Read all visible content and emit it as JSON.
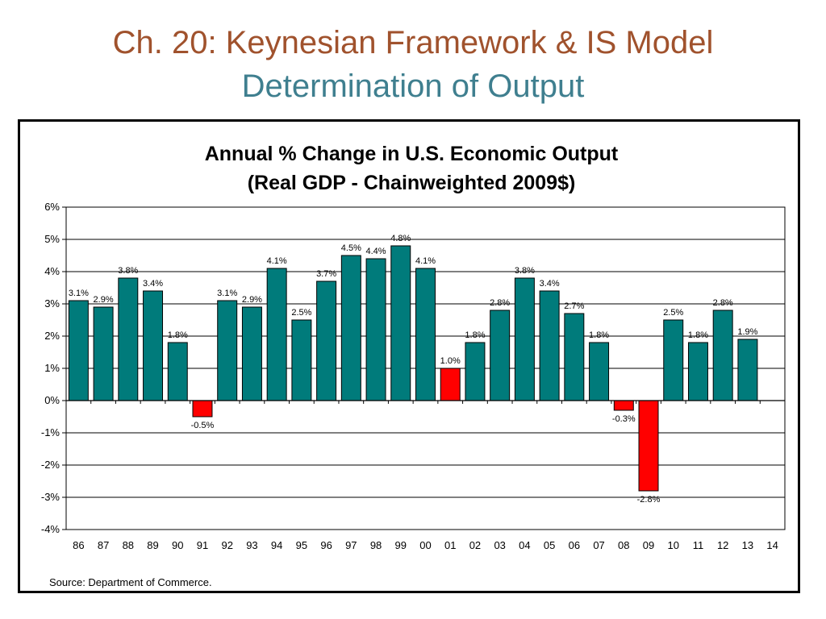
{
  "slide": {
    "title": "Ch. 20: Keynesian Framework & IS Model",
    "subtitle": "Determination of Output"
  },
  "colors": {
    "title": "#a0522d",
    "subtitle": "#3f7f8f",
    "positive_bar": "#007b7b",
    "negative_bar": "#ff0000"
  },
  "chart_data": {
    "type": "bar",
    "title_lines": [
      "Annual % Change in U.S. Economic Output",
      "(Real GDP - Chainweighted 2009$)"
    ],
    "categories": [
      "86",
      "87",
      "88",
      "89",
      "90",
      "91",
      "92",
      "93",
      "94",
      "95",
      "96",
      "97",
      "98",
      "99",
      "00",
      "01",
      "02",
      "03",
      "04",
      "05",
      "06",
      "07",
      "08",
      "09",
      "10",
      "11",
      "12",
      "13",
      "14"
    ],
    "values": [
      3.1,
      2.9,
      3.8,
      3.4,
      1.8,
      -0.5,
      3.1,
      2.9,
      4.1,
      2.5,
      3.7,
      4.5,
      4.4,
      4.8,
      4.1,
      1.0,
      1.8,
      2.8,
      3.8,
      3.4,
      2.7,
      1.8,
      -0.3,
      -2.8,
      2.5,
      1.8,
      2.8,
      1.9,
      null
    ],
    "data_labels": [
      "3.1%",
      "2.9%",
      "3.8%",
      "3.4%",
      "1.8%",
      "-0.5%",
      "3.1%",
      "2.9%",
      "4.1%",
      "2.5%",
      "3.7%",
      "4.5%",
      "4.4%",
      "4.8%",
      "4.1%",
      "1.0%",
      "1.8%",
      "2.8%",
      "3.8%",
      "3.4%",
      "2.7%",
      "1.8%",
      "-0.3%",
      "-2.8%",
      "2.5%",
      "1.8%",
      "2.8%",
      "1.9%",
      ""
    ],
    "highlighted_categories": [
      "01"
    ],
    "y_ticks": [
      -4,
      -3,
      -2,
      -1,
      0,
      1,
      2,
      3,
      4,
      5,
      6
    ],
    "y_tick_labels": [
      "-4%",
      "-3%",
      "-2%",
      "-1%",
      "0%",
      "1%",
      "2%",
      "3%",
      "4%",
      "5%",
      "6%"
    ],
    "ylim": [
      -4,
      6
    ],
    "grid": true,
    "legend": "none",
    "source": "Source: Department of Commerce."
  }
}
